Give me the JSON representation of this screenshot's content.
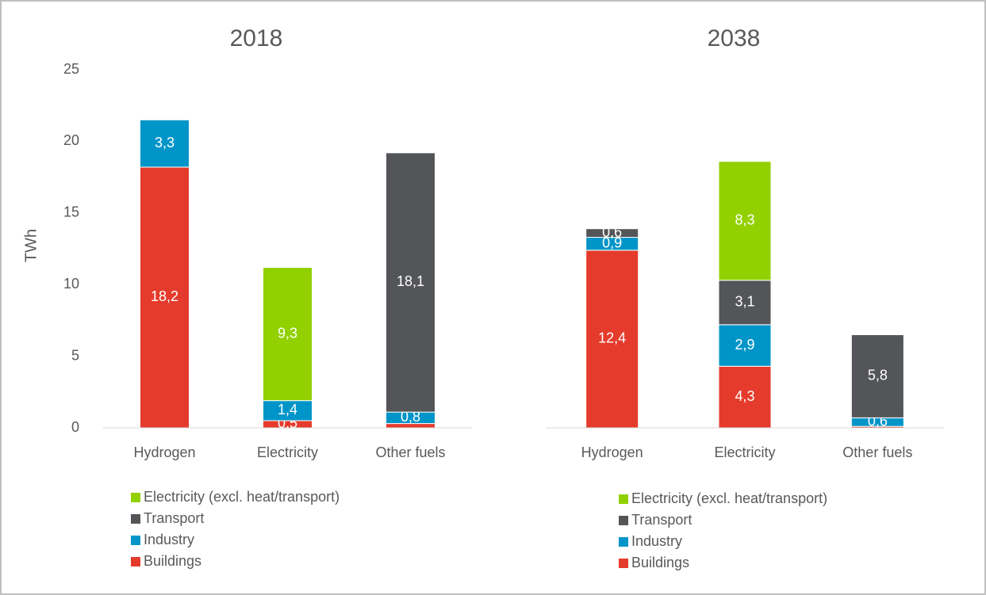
{
  "chart_data": [
    {
      "type": "bar",
      "stacked": true,
      "title": "2018",
      "ylabel": "TWh",
      "categories": [
        "Hydrogen",
        "Electricity",
        "Other fuels"
      ],
      "series": [
        {
          "name": "Buildings",
          "color": "#e53b2c",
          "values": [
            18.2,
            0.5,
            0.3
          ],
          "value_labels": [
            "18,2",
            "0,5",
            null
          ]
        },
        {
          "name": "Industry",
          "color": "#0095c8",
          "values": [
            3.3,
            1.4,
            0.8
          ],
          "value_labels": [
            "3,3",
            "1,4",
            "0,8"
          ]
        },
        {
          "name": "Transport",
          "color": "#545558",
          "values": [
            0,
            0,
            18.1
          ],
          "value_labels": [
            null,
            null,
            "18,1"
          ]
        },
        {
          "name": "Electricity (excl. heat/transport)",
          "color": "#92d000",
          "values": [
            0,
            9.3,
            0
          ],
          "value_labels": [
            null,
            "9,3",
            null
          ]
        }
      ],
      "ylim": [
        0,
        25
      ],
      "yticks": [
        0,
        5,
        10,
        15,
        20,
        25
      ],
      "grid": false
    },
    {
      "type": "bar",
      "stacked": true,
      "title": "2038",
      "categories": [
        "Hydrogen",
        "Electricity",
        "Other fuels"
      ],
      "series": [
        {
          "name": "Buildings",
          "color": "#e53b2c",
          "values": [
            12.4,
            4.3,
            0.1
          ],
          "value_labels": [
            "12,4",
            "4,3",
            null
          ]
        },
        {
          "name": "Industry",
          "color": "#0095c8",
          "values": [
            0.9,
            2.9,
            0.6
          ],
          "value_labels": [
            "0,9",
            "2,9",
            "0,6"
          ]
        },
        {
          "name": "Transport",
          "color": "#545558",
          "values": [
            0.6,
            3.1,
            5.8
          ],
          "value_labels": [
            "0,6",
            "3,1",
            "5,8"
          ]
        },
        {
          "name": "Electricity (excl. heat/transport)",
          "color": "#92d000",
          "values": [
            0,
            8.3,
            0
          ],
          "value_labels": [
            null,
            "8,3",
            null
          ]
        }
      ],
      "ylim": [
        0,
        25
      ],
      "grid": false
    }
  ]
}
